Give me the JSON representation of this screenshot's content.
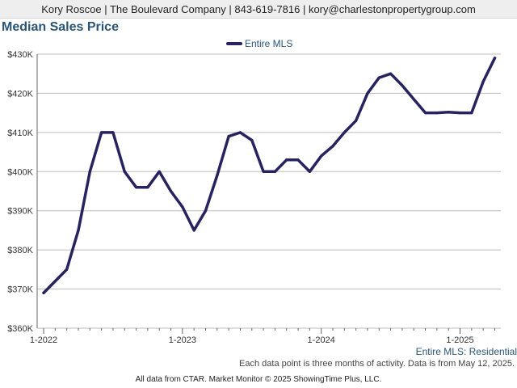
{
  "header": {
    "contact": "Kory Roscoe | The Boulevard Company | 843-619-7816 | kory@charlestonpropertygroup.com"
  },
  "colors": {
    "line": "#26235e",
    "title": "#2b5576",
    "grid": "#bbbbbb"
  },
  "chart_data": {
    "type": "line",
    "title": "Median Sales Price",
    "xlabel": "",
    "ylabel": "",
    "ylim": [
      360000,
      430000
    ],
    "yticks": [
      360000,
      370000,
      380000,
      390000,
      400000,
      410000,
      420000,
      430000
    ],
    "ytick_labels": [
      "$360K",
      "$370K",
      "$380K",
      "$390K",
      "$400K",
      "$410K",
      "$420K",
      "$430K"
    ],
    "xtick_labels": [
      "1-2022",
      "1-2023",
      "1-2024",
      "1-2025"
    ],
    "xtick_index": [
      0,
      12,
      24,
      36
    ],
    "grid": true,
    "legend": "top-center",
    "series": [
      {
        "name": "Entire MLS",
        "x": [
          "1-2022",
          "2-2022",
          "3-2022",
          "4-2022",
          "5-2022",
          "6-2022",
          "7-2022",
          "8-2022",
          "9-2022",
          "10-2022",
          "11-2022",
          "12-2022",
          "1-2023",
          "2-2023",
          "3-2023",
          "4-2023",
          "5-2023",
          "6-2023",
          "7-2023",
          "8-2023",
          "9-2023",
          "10-2023",
          "11-2023",
          "12-2023",
          "1-2024",
          "2-2024",
          "3-2024",
          "4-2024",
          "5-2024",
          "6-2024",
          "7-2024",
          "8-2024",
          "9-2024",
          "10-2024",
          "11-2024",
          "12-2024",
          "1-2025",
          "2-2025",
          "3-2025",
          "4-2025"
        ],
        "values": [
          369000,
          372000,
          375000,
          385000,
          400000,
          410000,
          410000,
          400000,
          396000,
          396000,
          400000,
          395000,
          391000,
          385000,
          390000,
          399000,
          409000,
          410000,
          408000,
          400000,
          400000,
          403000,
          403000,
          400000,
          404000,
          406500,
          410000,
          413000,
          420000,
          424000,
          425000,
          422000,
          418500,
          415000,
          415000,
          415200,
          415000,
          415000,
          423000,
          429000
        ]
      }
    ]
  },
  "footer": {
    "source_label": "Entire MLS: Residential",
    "note": "Each data point is three months of activity. Data is from May 12, 2025.",
    "credit": "All data from CTAR. Market Monitor © 2025 ShowingTime Plus, LLC."
  }
}
